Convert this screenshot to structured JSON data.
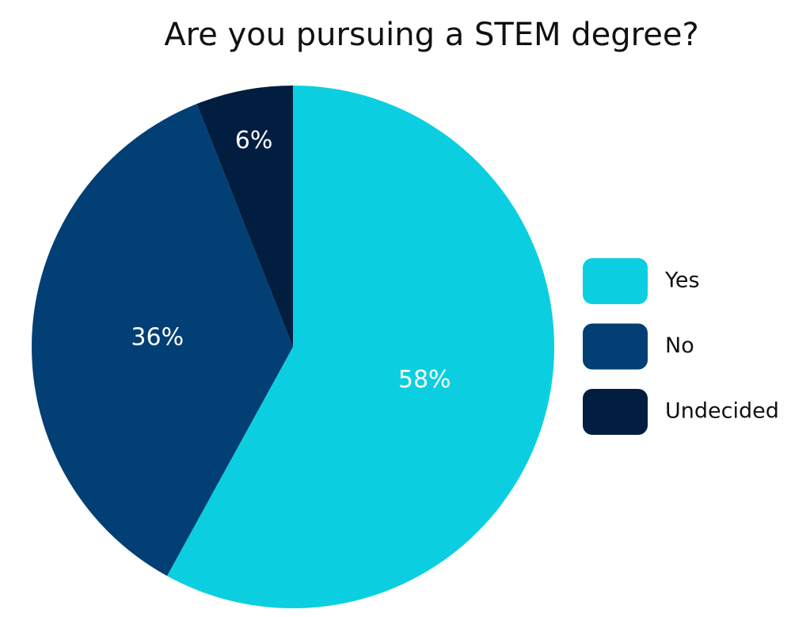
{
  "chart_data": {
    "type": "pie",
    "title": "Are you pursuing a STEM degree?",
    "categories": [
      "Yes",
      "No",
      "Undecided"
    ],
    "values": [
      58,
      36,
      6
    ],
    "value_labels": [
      "58%",
      "36%",
      "6%"
    ],
    "colors": [
      "#0bcfe0",
      "#023f74",
      "#011d40"
    ],
    "legend": "right"
  }
}
